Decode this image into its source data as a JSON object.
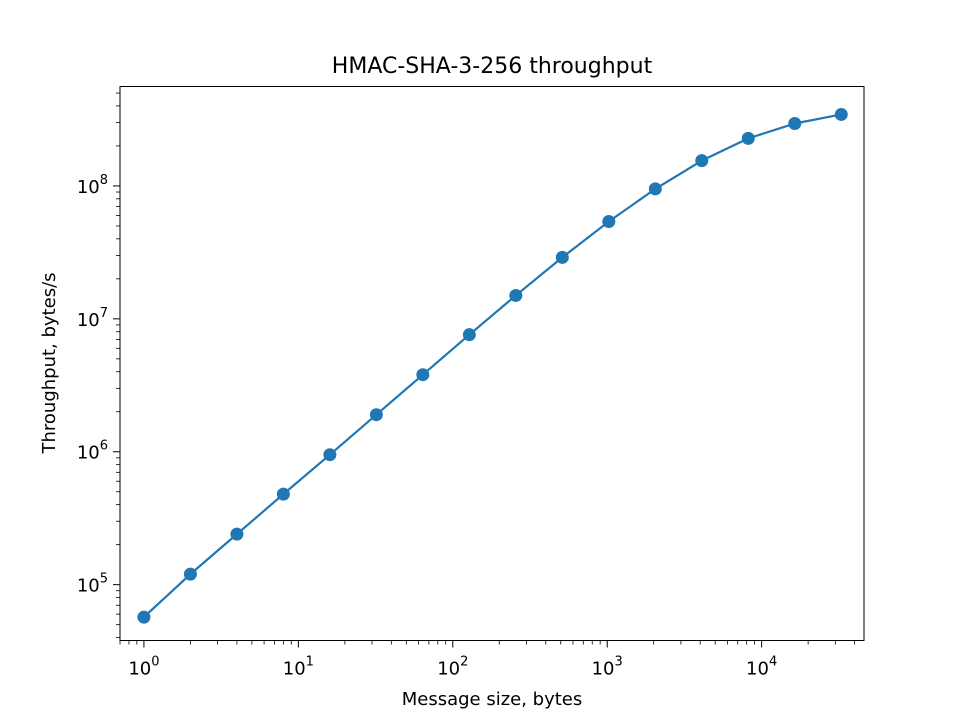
{
  "chart_data": {
    "type": "line",
    "title": "HMAC-SHA-3-256 throughput",
    "xlabel": "Message size, bytes",
    "ylabel": "Throughput, bytes/s",
    "xscale": "log",
    "yscale": "log",
    "xlim": [
      0.7,
      46000
    ],
    "ylim": [
      38000,
      560000000
    ],
    "grid": false,
    "legend": "none",
    "x_ticks": [
      {
        "base": "10",
        "exp": "0",
        "value": 1
      },
      {
        "base": "10",
        "exp": "1",
        "value": 10
      },
      {
        "base": "10",
        "exp": "2",
        "value": 100
      },
      {
        "base": "10",
        "exp": "3",
        "value": 1000
      },
      {
        "base": "10",
        "exp": "4",
        "value": 10000
      }
    ],
    "y_ticks": [
      {
        "base": "10",
        "exp": "5",
        "value": 100000
      },
      {
        "base": "10",
        "exp": "6",
        "value": 1000000
      },
      {
        "base": "10",
        "exp": "7",
        "value": 10000000
      },
      {
        "base": "10",
        "exp": "8",
        "value": 100000000
      }
    ],
    "series": [
      {
        "color": "#1f77b4",
        "marker": "circle",
        "x": [
          1,
          2,
          4,
          8,
          16,
          32,
          64,
          128,
          256,
          512,
          1024,
          2048,
          4096,
          8192,
          16384,
          32768
        ],
        "y": [
          57000,
          120000,
          240000,
          480000,
          950000,
          1900000,
          3800000,
          7600000,
          15000000,
          29000000,
          54000000,
          95000000,
          155000000,
          228000000,
          295000000,
          345000000
        ]
      }
    ]
  }
}
